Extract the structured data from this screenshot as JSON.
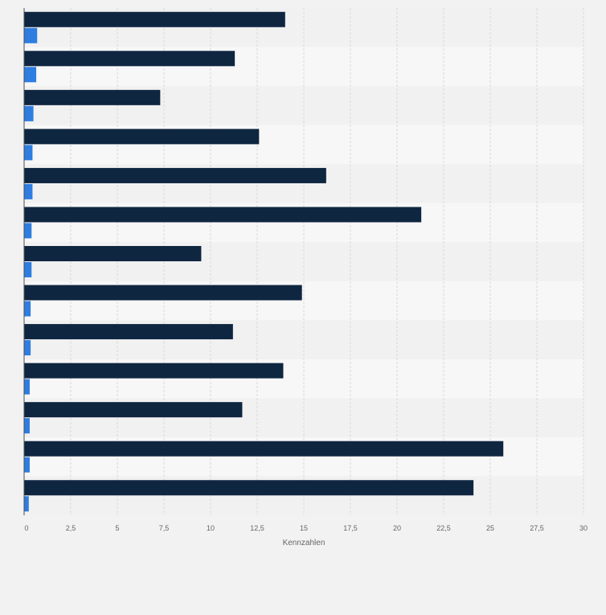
{
  "chart_data": {
    "type": "bar",
    "orientation": "horizontal",
    "categories": [
      "",
      "",
      "",
      "",
      "",
      "",
      "",
      "",
      "",
      "",
      "",
      "",
      ""
    ],
    "series": [
      {
        "color": "#0f2641",
        "values": [
          14.0,
          11.3,
          7.3,
          12.6,
          16.2,
          21.3,
          9.5,
          14.9,
          11.2,
          13.9,
          11.7,
          25.7,
          24.1
        ]
      },
      {
        "color": "#2e7de0",
        "values": [
          0.7,
          0.65,
          0.5,
          0.45,
          0.45,
          0.4,
          0.4,
          0.35,
          0.35,
          0.3,
          0.3,
          0.3,
          0.25
        ]
      }
    ],
    "xlabel": "Kennzahlen",
    "xlim": [
      0,
      30
    ],
    "xticks": [
      0,
      2.5,
      5,
      7.5,
      10,
      12.5,
      15,
      17.5,
      20,
      22.5,
      25,
      27.5,
      30
    ],
    "xtick_labels": [
      "0",
      "2,5",
      "5",
      "7,5",
      "10",
      "12,5",
      "15",
      "17,5",
      "20",
      "22,5",
      "25",
      "27,5",
      "30"
    ],
    "grid": true,
    "legend": "none"
  },
  "colors": {
    "background": "#f2f2f2",
    "band_light": "#f7f7f7",
    "band_dark": "#f1f1f1",
    "gridline": "#d9d9d9",
    "axis": "#4d4d4d",
    "label": "#666666"
  }
}
